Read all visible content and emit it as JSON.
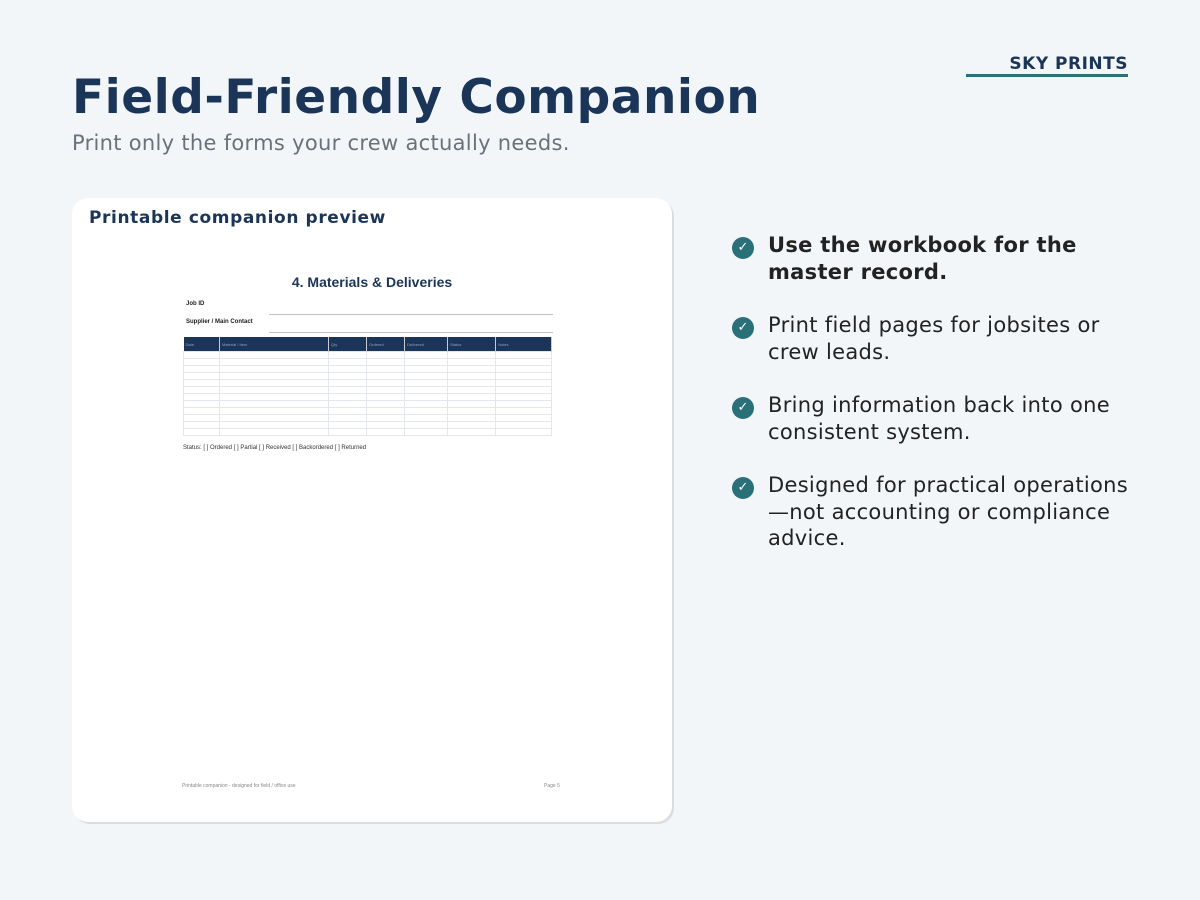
{
  "brand": "SKY PRINTS",
  "title": "Field-Friendly Companion",
  "subtitle": "Print only the forms your crew actually needs.",
  "preview": {
    "title": "Printable companion preview",
    "doc_heading": "4. Materials & Deliveries",
    "fields": [
      "Job ID",
      "Supplier / Main Contact"
    ],
    "table_headers": [
      "Date",
      "Material / Item",
      "Qty",
      "Ordered",
      "Delivered",
      "Status",
      "Notes"
    ],
    "row_count": 12,
    "status_line": "Status: [ ] Ordered [ ] Partial [ ] Received [ ] Backordered [ ] Returned",
    "footer_left": "Printable companion - designed for field / office use",
    "footer_right": "Page 5"
  },
  "bullets": [
    {
      "text": "Use the workbook for the master record.",
      "strong": true
    },
    {
      "text": "Print field pages for jobsites or crew leads.",
      "strong": false
    },
    {
      "text": "Bring information back into one consistent system.",
      "strong": false
    },
    {
      "text": "Designed for practical operations—not accounting or compliance advice.",
      "strong": false
    }
  ],
  "colors": {
    "navy": "#1b3558",
    "teal": "#2a7078",
    "background": "#f3f6f9"
  }
}
